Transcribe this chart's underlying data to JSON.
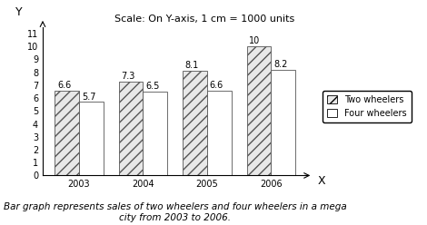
{
  "years": [
    "2003",
    "2004",
    "2005",
    "2006"
  ],
  "two_wheelers": [
    6.6,
    7.3,
    8.1,
    10.0
  ],
  "four_wheelers": [
    5.7,
    6.5,
    6.6,
    8.2
  ],
  "two_labels": [
    "6.6",
    "7.3",
    "8.1",
    "10"
  ],
  "four_labels": [
    "5.7",
    "6.5",
    "6.6",
    "8.2"
  ],
  "ylim": [
    0,
    11.5
  ],
  "yticks": [
    0,
    1,
    2,
    3,
    4,
    5,
    6,
    7,
    8,
    9,
    10,
    11
  ],
  "bar_width": 0.38,
  "hatch_two": "///",
  "hatch_four": "",
  "color_two": "#e8e8e8",
  "color_four": "white",
  "edgecolor": "#555555",
  "title": "Scale: On Y-axis, 1 cm = 1000 units",
  "ylabel": "Y",
  "xlabel": "X",
  "caption": "Bar graph represents sales of two wheelers and four wheelers in a mega\ncity from 2003 to 2006.",
  "legend_two": "Two wheelers",
  "legend_four": "Four wheelers",
  "title_fontsize": 8,
  "label_fontsize": 7,
  "tick_fontsize": 7,
  "caption_fontsize": 7.5
}
